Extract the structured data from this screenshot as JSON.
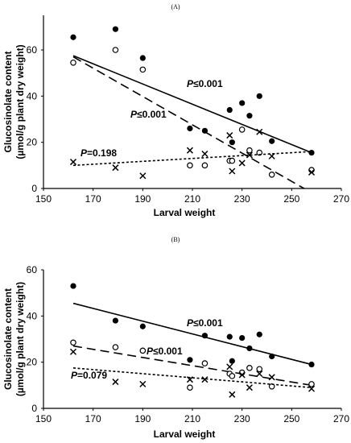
{
  "figure": {
    "panel_labels": [
      "(A)",
      "(B)"
    ]
  },
  "chart_data": [
    {
      "type": "scatter",
      "panel": "(A)",
      "xlabel": "Larval weight",
      "ylabel": [
        "Glucosinolate content",
        "(µmol/g  plant dry weight)"
      ],
      "xlim": [
        150,
        270
      ],
      "ylim": [
        0,
        75
      ],
      "xticks": [
        150,
        170,
        190,
        210,
        230,
        250,
        270
      ],
      "yticks": [
        0,
        20,
        40,
        60
      ],
      "grid": false,
      "annotations": [
        {
          "text": "P≤0.001",
          "series": 0
        },
        {
          "text": "P≤0.001",
          "series": 1
        },
        {
          "text": "P=0.198",
          "series": 2
        }
      ],
      "series": [
        {
          "marker": "filled-circle",
          "line": "solid",
          "x": [
            162,
            179,
            190,
            209,
            215,
            225,
            226,
            230,
            233,
            237,
            242,
            258
          ],
          "y": [
            65.5,
            69,
            56.5,
            26,
            25,
            34,
            20,
            37,
            31.5,
            40,
            20.5,
            15.5
          ],
          "fit": [
            [
              162,
              57.5
            ],
            [
              258,
              15.5
            ]
          ]
        },
        {
          "marker": "open-circle",
          "line": "dashed",
          "x": [
            162,
            179,
            190,
            209,
            215,
            225,
            226,
            230,
            233,
            237,
            242,
            258
          ],
          "y": [
            54.5,
            60,
            51.5,
            10,
            10,
            12,
            12,
            25.5,
            16.5,
            15.5,
            6,
            8
          ],
          "fit": [
            [
              162,
              57
            ],
            [
              255,
              0
            ]
          ]
        },
        {
          "marker": "cross",
          "line": "dotted",
          "x": [
            162,
            179,
            190,
            209,
            215,
            225,
            226,
            230,
            233,
            237,
            242,
            258
          ],
          "y": [
            11.5,
            9,
            5.5,
            16.5,
            15,
            23,
            7.5,
            11,
            14.5,
            24.5,
            14,
            7
          ],
          "fit": [
            [
              162,
              10
            ],
            [
              258,
              16
            ]
          ]
        }
      ]
    },
    {
      "type": "scatter",
      "panel": "(B)",
      "xlabel": "Larval weight",
      "ylabel": [
        "Glucosinolate content",
        "(µmol/g  plant dry weight)"
      ],
      "xlim": [
        150,
        270
      ],
      "ylim": [
        0,
        60
      ],
      "xticks": [
        150,
        170,
        190,
        210,
        230,
        250,
        270
      ],
      "yticks": [
        0,
        20,
        40,
        60
      ],
      "grid": false,
      "annotations": [
        {
          "text": "P≤0.001",
          "series": 0
        },
        {
          "text": "P≤0.001",
          "series": 1
        },
        {
          "text": "P=0.079",
          "series": 2
        }
      ],
      "series": [
        {
          "marker": "filled-circle",
          "line": "solid",
          "x": [
            162,
            179,
            190,
            209,
            215,
            225,
            226,
            230,
            233,
            237,
            242,
            258
          ],
          "y": [
            53,
            38,
            35.5,
            21,
            31.5,
            31,
            20.5,
            30.5,
            26,
            32,
            22.5,
            19
          ],
          "fit": [
            [
              162,
              45.5
            ],
            [
              258,
              19
            ]
          ]
        },
        {
          "marker": "open-circle",
          "line": "dashed",
          "x": [
            162,
            179,
            190,
            209,
            215,
            225,
            226,
            230,
            233,
            237,
            242,
            258
          ],
          "y": [
            28.5,
            26.5,
            25,
            9,
            19.5,
            15,
            14,
            15.5,
            17.5,
            17,
            9.5,
            10.5
          ],
          "fit": [
            [
              162,
              27
            ],
            [
              258,
              10
            ]
          ]
        },
        {
          "marker": "cross",
          "line": "dotted",
          "x": [
            162,
            179,
            190,
            209,
            215,
            225,
            226,
            230,
            233,
            237,
            242,
            258
          ],
          "y": [
            24.5,
            11.5,
            10.5,
            12.5,
            12.5,
            18,
            6,
            14.5,
            9,
            15,
            13.5,
            8.5
          ],
          "fit": [
            [
              162,
              17.5
            ],
            [
              258,
              9
            ]
          ]
        }
      ]
    }
  ]
}
